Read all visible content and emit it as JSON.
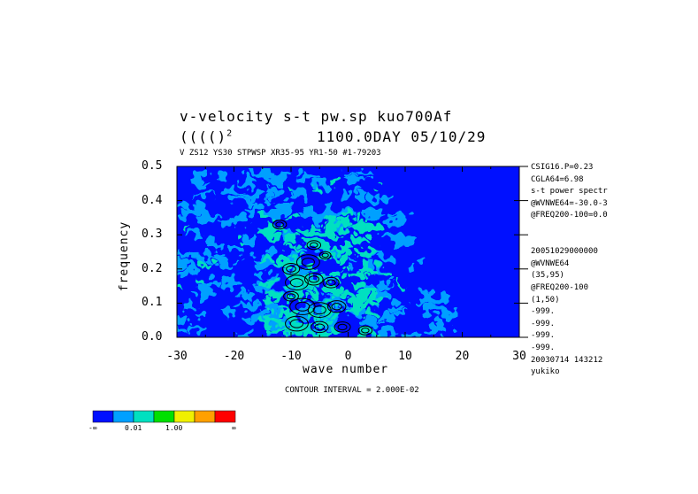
{
  "header": {
    "title_line1": "v-velocity s-t pw.sp  kuo700Af",
    "title_line2_left": "(((()",
    "title_line2_sup": "2",
    "title_line2_right": "1100.0DAY 05/10/29",
    "info_line": "V ZS12 YS30 STPWSP XR35-95 YR1-50        #1-79203"
  },
  "side_info": [
    "CSIG16.P=0.23",
    "CGLA64=6.98",
    "s-t power spectr",
    "@WVNWE64=-30.0-3",
    "@FREQ200-100=0.0",
    "",
    "",
    "20051029000000",
    "@WVNWE64",
    "(35,95)",
    "@FREQ200-100",
    "(1,50)",
    "-999.",
    "-999.",
    "-999.",
    "-999.",
    "20030714 143212",
    "yukiko"
  ],
  "contour_interval": "CONTOUR INTERVAL = 2.000E-02",
  "colorbar": {
    "colors": [
      "#0010ff",
      "#00a0ff",
      "#00e0c0",
      "#00e000",
      "#f0f000",
      "#ffa000",
      "#ff0000"
    ],
    "labels": [
      "-∞",
      "0.01",
      "1.00",
      "∞"
    ]
  },
  "chart_data": {
    "type": "heatmap",
    "title": "v-velocity s-t pw.sp  kuo700Af",
    "xlabel": "wave number",
    "ylabel": "frequency",
    "xlim": [
      -30,
      30
    ],
    "ylim": [
      0.0,
      0.5
    ],
    "xticks": [
      -30,
      -20,
      -10,
      0,
      10,
      20,
      30
    ],
    "xtick_labels": [
      "-30",
      "-20",
      "-10",
      "0",
      "10",
      "20",
      "30"
    ],
    "yticks": [
      0.0,
      0.1,
      0.2,
      0.3,
      0.4,
      0.5
    ],
    "ytick_labels": [
      "0.0",
      "0.1",
      "0.2",
      "0.3",
      "0.4",
      "0.5"
    ],
    "colors": {
      "background": "#0010ff",
      "light": "#00a0ff",
      "mid": "#00e0c0"
    },
    "contour_interval": 0.02,
    "contours": [
      {
        "x": -12,
        "y": 0.33,
        "r": 1.2
      },
      {
        "x": -6,
        "y": 0.27,
        "r": 1.2
      },
      {
        "x": -4,
        "y": 0.24,
        "r": 1.0
      },
      {
        "x": -7,
        "y": 0.22,
        "r": 2.0
      },
      {
        "x": -10,
        "y": 0.2,
        "r": 1.5
      },
      {
        "x": -9,
        "y": 0.16,
        "r": 2.0
      },
      {
        "x": -6,
        "y": 0.17,
        "r": 1.6
      },
      {
        "x": -3,
        "y": 0.16,
        "r": 1.4
      },
      {
        "x": -10,
        "y": 0.12,
        "r": 1.3
      },
      {
        "x": -8,
        "y": 0.09,
        "r": 2.2
      },
      {
        "x": -5,
        "y": 0.08,
        "r": 2.0
      },
      {
        "x": -2,
        "y": 0.09,
        "r": 1.6
      },
      {
        "x": -9,
        "y": 0.04,
        "r": 2.0
      },
      {
        "x": -5,
        "y": 0.03,
        "r": 1.5
      },
      {
        "x": -1,
        "y": 0.03,
        "r": 1.4
      },
      {
        "x": 3,
        "y": 0.02,
        "r": 1.2
      }
    ]
  }
}
